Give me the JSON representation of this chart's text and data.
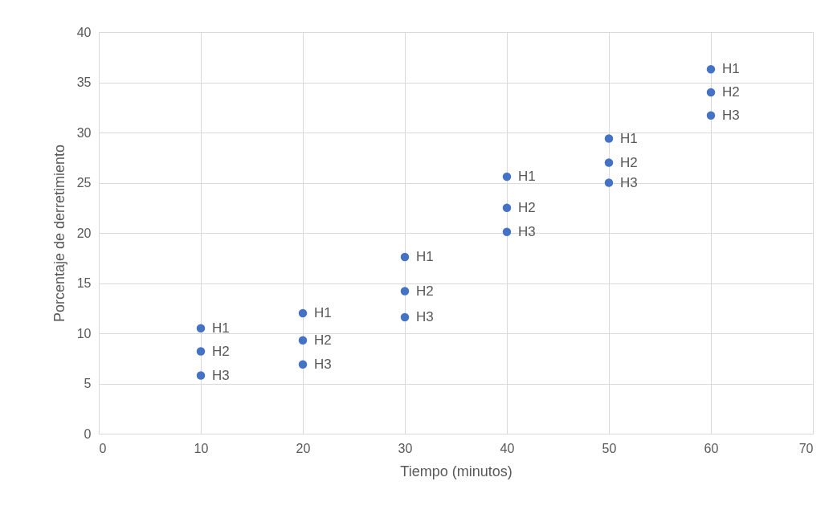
{
  "chart_data": {
    "type": "scatter",
    "xlabel": "Tiempo (minutos)",
    "ylabel": "Porcentaje de derretimiento",
    "xlim": [
      0,
      70
    ],
    "xticks": [
      0,
      10,
      20,
      30,
      40,
      50,
      60,
      70
    ],
    "ylim": [
      0,
      40
    ],
    "yticks": [
      0,
      5,
      10,
      15,
      20,
      25,
      30,
      35,
      40
    ],
    "grid": true,
    "legend": false,
    "marker": "circle",
    "series": [
      {
        "name": "H1",
        "color": "#4472c4",
        "x": [
          10,
          20,
          30,
          40,
          50,
          60
        ],
        "values": [
          10.5,
          12,
          17.6,
          25.6,
          29.4,
          36.3
        ]
      },
      {
        "name": "H2",
        "color": "#4472c4",
        "x": [
          10,
          20,
          30,
          40,
          50,
          60
        ],
        "values": [
          8.2,
          9.3,
          14.2,
          22.5,
          27,
          34
        ]
      },
      {
        "name": "H3",
        "color": "#4472c4",
        "x": [
          10,
          20,
          30,
          40,
          50,
          60
        ],
        "values": [
          5.8,
          6.9,
          11.6,
          20.1,
          25,
          31.7
        ]
      }
    ]
  }
}
